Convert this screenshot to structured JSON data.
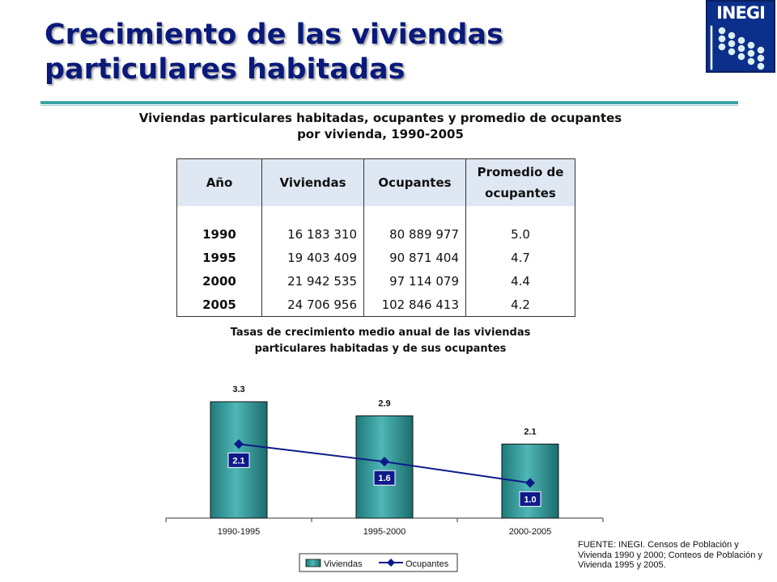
{
  "slide": {
    "title": "Crecimiento de las viviendas particulares habitadas",
    "logo_text": "INEGI"
  },
  "table": {
    "title": "Viviendas particulares habitadas, ocupantes y promedio de ocupantes por vivienda, 1990-2005",
    "headers": {
      "year": "Año",
      "dwellings": "Viviendas",
      "occupants": "Ocupantes",
      "avg_line1": "Promedio de",
      "avg_line2": "ocupantes"
    },
    "rows": [
      {
        "year": "1990",
        "dwellings": "16 183 310",
        "occupants": "80 889 977",
        "avg": "5.0"
      },
      {
        "year": "1995",
        "dwellings": "19 403 409",
        "occupants": "90 871 404",
        "avg": "4.7"
      },
      {
        "year": "2000",
        "dwellings": "21 942 535",
        "occupants": "97 114 079",
        "avg": "4.4"
      },
      {
        "year": "2005",
        "dwellings": "24 706 956",
        "occupants": "102 846 413",
        "avg": "4.2"
      }
    ]
  },
  "chart_data": {
    "type": "bar",
    "title_line1": "Tasas de crecimiento medio anual de las viviendas",
    "title_line2": "particulares habitadas y de sus ocupantes",
    "categories": [
      "1990-1995",
      "1995-2000",
      "2000-2005"
    ],
    "series": [
      {
        "name": "Viviendas",
        "type": "bar",
        "values": [
          3.3,
          2.9,
          2.1
        ],
        "labels": [
          "3.3",
          "2.9",
          "2.1"
        ],
        "color": "#2a9090"
      },
      {
        "name": "Ocupantes",
        "type": "line",
        "values": [
          2.1,
          1.6,
          1.0
        ],
        "labels": [
          "2.1",
          "1.6",
          "1.0"
        ],
        "color": "#0d1a8a"
      }
    ],
    "ylim": [
      0,
      3.3
    ],
    "grid": false,
    "legend": "bottom"
  },
  "source_note": "FUENTE: INEGI. Censos de Población y Vivienda 1990 y 2000; Conteos de Población y Vivienda 1995 y 2005."
}
